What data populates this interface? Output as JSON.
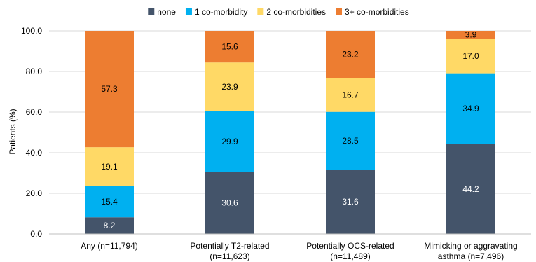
{
  "chart_data": {
    "type": "bar",
    "stacked": true,
    "title": "",
    "xlabel": "",
    "ylabel": "Patients (%)",
    "ylim": [
      0,
      100
    ],
    "yticks": [
      "0.0",
      "20.0",
      "40.0",
      "60.0",
      "80.0",
      "100.0"
    ],
    "ytick_values": [
      0,
      20,
      40,
      60,
      80,
      100
    ],
    "grid": true,
    "legend_position": "top",
    "categories": [
      [
        "Any (n=11,794)"
      ],
      [
        "Potentially T2-related",
        "(n=11,623)"
      ],
      [
        "Potentially OCS-related",
        "(n=11,489)"
      ],
      [
        "Mimicking or aggravating",
        "asthma (n=7,496)"
      ]
    ],
    "series": [
      {
        "name": "none",
        "color": "#44546a",
        "label_color": "#ffffff",
        "values": [
          8.2,
          30.6,
          31.6,
          44.2
        ]
      },
      {
        "name": "1 co-morbidity",
        "color": "#00b0f0",
        "label_color": "#000000",
        "values": [
          15.4,
          29.9,
          28.5,
          34.9
        ]
      },
      {
        "name": "2 co-morbidities",
        "color": "#ffd966",
        "label_color": "#000000",
        "values": [
          19.1,
          23.9,
          16.7,
          17.0
        ]
      },
      {
        "name": "3+ co-morbidities",
        "color": "#ed7d31",
        "label_color": "#000000",
        "values": [
          57.3,
          15.6,
          23.2,
          3.9
        ]
      }
    ]
  }
}
